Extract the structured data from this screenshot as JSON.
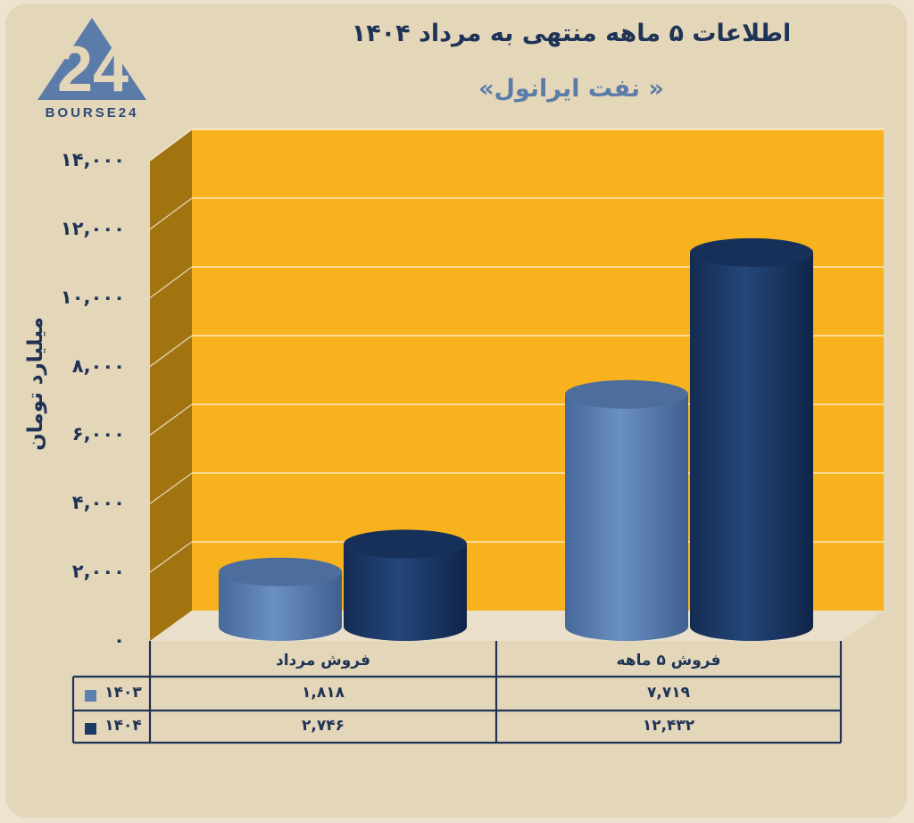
{
  "brand": {
    "logo_text": "BOURSE24",
    "logo_numeral": "24"
  },
  "title": "اطلاعات ۵ ماهه منتهی به مرداد ۱۴۰۴",
  "subtitle": "« نفت ایرانول»",
  "colors": {
    "background": "#e3d6b9",
    "plot": "#f8b21d",
    "wall": "#a27410",
    "series_1403": "#5d82b2",
    "series_1404": "#1d3a66",
    "text": "#1e3356"
  },
  "chart_data": {
    "type": "bar",
    "categories": [
      "فروش مرداد",
      "فروش ۵ ماهه"
    ],
    "series": [
      {
        "name": "۱۴۰۳",
        "values": [
          1818,
          7719
        ],
        "labels": [
          "۱,۸۱۸",
          "۷,۷۱۹"
        ]
      },
      {
        "name": "۱۴۰۴",
        "values": [
          2746,
          12432
        ],
        "labels": [
          "۲,۷۴۶",
          "۱۲,۴۳۲"
        ]
      }
    ],
    "ylabel": "میلیارد تومان",
    "ylim": [
      0,
      14000
    ],
    "yticks": [
      {
        "value": 0,
        "label": "۰"
      },
      {
        "value": 2000,
        "label": "۲,۰۰۰"
      },
      {
        "value": 4000,
        "label": "۴,۰۰۰"
      },
      {
        "value": 6000,
        "label": "۶,۰۰۰"
      },
      {
        "value": 8000,
        "label": "۸,۰۰۰"
      },
      {
        "value": 10000,
        "label": "۱۰,۰۰۰"
      },
      {
        "value": 12000,
        "label": "۱۲,۰۰۰"
      },
      {
        "value": 14000,
        "label": "۱۴,۰۰۰"
      }
    ],
    "grid": true,
    "legend": "data-table"
  }
}
